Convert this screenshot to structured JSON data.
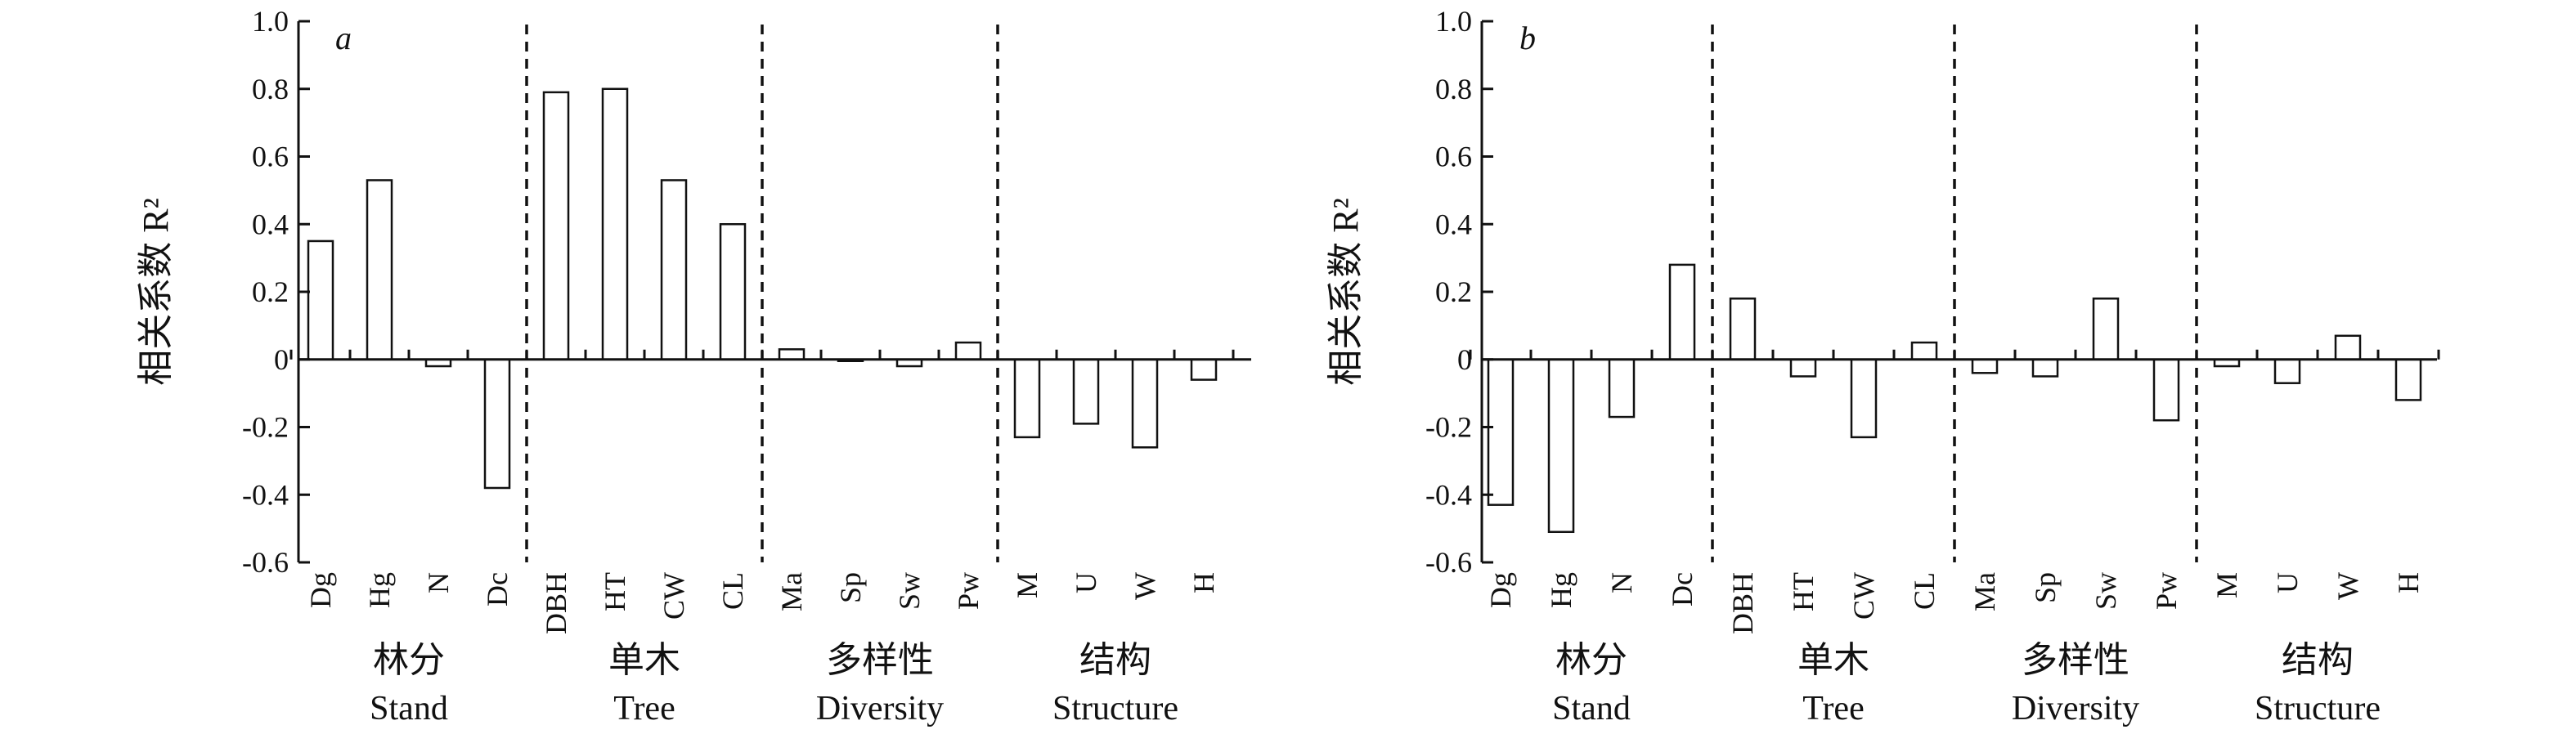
{
  "chart_data": [
    {
      "type": "bar",
      "panel_label": "a",
      "ylabel": "相关系数 R²",
      "ylim": [
        -0.6,
        1.0
      ],
      "yticks": [
        "1.0",
        "0.8",
        "0.6",
        "0.4",
        "0.2",
        "0",
        "-0.2",
        "-0.4",
        "-0.6"
      ],
      "categories": [
        "Dg",
        "Hg",
        "N",
        "Dc",
        "DBH",
        "HT",
        "CW",
        "CL",
        "Ma",
        "Sp",
        "Sw",
        "Pw",
        "M",
        "U",
        "W",
        "H"
      ],
      "values": [
        0.35,
        0.53,
        -0.02,
        -0.38,
        0.79,
        0.8,
        0.53,
        0.4,
        0.03,
        0.0,
        -0.02,
        0.05,
        -0.23,
        -0.19,
        -0.26,
        -0.06
      ],
      "groups": [
        {
          "cn": "林分",
          "en": "Stand",
          "size": 4
        },
        {
          "cn": "单木",
          "en": "Tree",
          "size": 4
        },
        {
          "cn": "多样性",
          "en": "Diversity",
          "size": 4
        },
        {
          "cn": "结构",
          "en": "Structure",
          "size": 4
        }
      ]
    },
    {
      "type": "bar",
      "panel_label": "b",
      "ylabel": "相关系数 R²",
      "ylim": [
        -0.6,
        1.0
      ],
      "yticks": [
        "1.0",
        "0.8",
        "0.6",
        "0.4",
        "0.2",
        "0",
        "-0.2",
        "-0.4",
        "-0.6"
      ],
      "categories": [
        "Dg",
        "Hg",
        "N",
        "Dc",
        "DBH",
        "HT",
        "CW",
        "CL",
        "Ma",
        "Sp",
        "Sw",
        "Pw",
        "M",
        "U",
        "W",
        "H"
      ],
      "values": [
        -0.43,
        -0.51,
        -0.17,
        0.28,
        0.18,
        -0.05,
        -0.23,
        0.05,
        -0.04,
        -0.05,
        0.18,
        -0.18,
        -0.02,
        -0.07,
        0.07,
        -0.12
      ],
      "groups": [
        {
          "cn": "林分",
          "en": "Stand",
          "size": 4
        },
        {
          "cn": "单木",
          "en": "Tree",
          "size": 4
        },
        {
          "cn": "多样性",
          "en": "Diversity",
          "size": 4
        },
        {
          "cn": "结构",
          "en": "Structure",
          "size": 4
        }
      ]
    }
  ]
}
